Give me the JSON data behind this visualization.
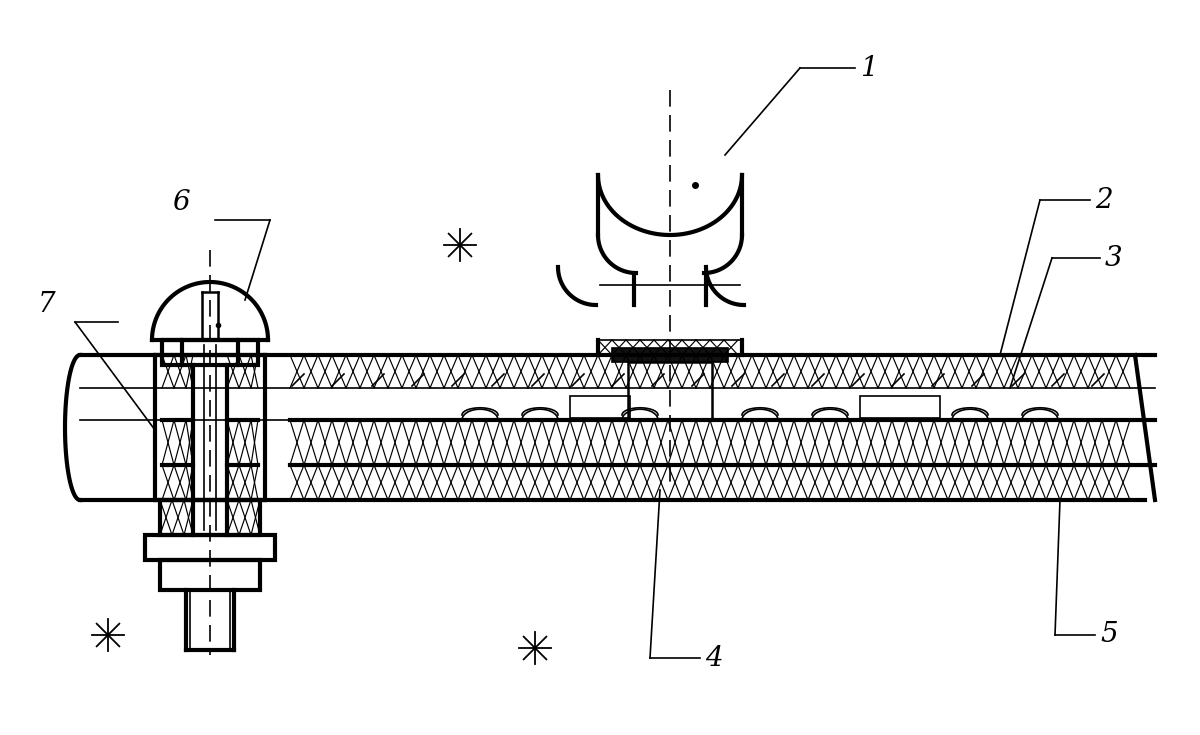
{
  "bg_color": "#ffffff",
  "line_color": "#000000",
  "figsize": [
    12.0,
    7.35
  ],
  "dpi": 100,
  "lw_thick": 3.0,
  "lw_med": 1.8,
  "lw_thin": 1.2,
  "label_fontsize": 20
}
